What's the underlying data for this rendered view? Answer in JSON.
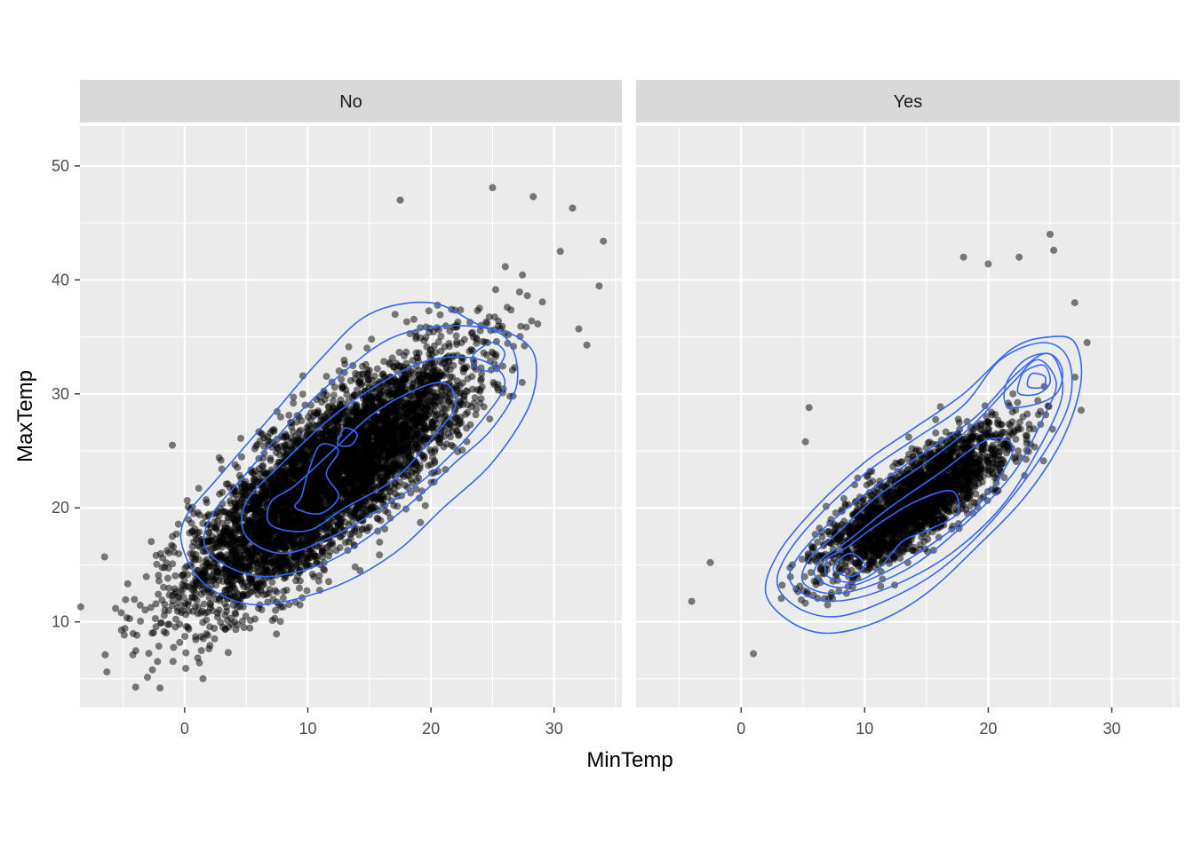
{
  "chart_data": {
    "type": "scatter",
    "facet_by": "RainTomorrow",
    "xlabel": "MinTemp",
    "ylabel": "MaxTemp",
    "xlim": [
      -8.5,
      35.5
    ],
    "ylim": [
      2.5,
      53.5
    ],
    "x_ticks": [
      0,
      10,
      20,
      30
    ],
    "y_ticks": [
      10,
      20,
      30,
      40,
      50
    ],
    "grid": true,
    "legend": "none",
    "colors": {
      "panel_bg": "#ebebeb",
      "strip_bg": "#d9d9d9",
      "grid": "#ffffff",
      "point": "#000000",
      "contour": "#3366ff"
    },
    "panels": [
      {
        "label": "No",
        "point_cloud": {
          "center": [
            11.5,
            22.5
          ],
          "axis_angle_deg": 44,
          "major_sd": 13.5,
          "minor_sd": 4.3,
          "count": 5200,
          "outliers": [
            [
              -2,
              4.2
            ],
            [
              34,
              43.4
            ],
            [
              32,
              35.7
            ],
            [
              1.2,
              6.4
            ],
            [
              -6.5,
              15.7
            ],
            [
              25,
              48.1
            ],
            [
              28.3,
              47.3
            ],
            [
              31.5,
              46.3
            ],
            [
              -4.2,
              7.1
            ],
            [
              30.5,
              42.5
            ],
            [
              -1,
              25.5
            ],
            [
              17.5,
              47
            ]
          ]
        },
        "contours": [
          [
            [
              0,
              16
            ],
            [
              2,
              13
            ],
            [
              6,
              11.5
            ],
            [
              12,
              13
            ],
            [
              17,
              16
            ],
            [
              21,
              20
            ],
            [
              25,
              24
            ],
            [
              28,
              29
            ],
            [
              28.5,
              33
            ],
            [
              27,
              35
            ],
            [
              24,
              36
            ],
            [
              20,
              38
            ],
            [
              15,
              37
            ],
            [
              11,
              33
            ],
            [
              7,
              28
            ],
            [
              3,
              23
            ],
            [
              0,
              19
            ]
          ],
          [
            [
              2,
              16
            ],
            [
              6,
              14
            ],
            [
              11,
              15
            ],
            [
              15,
              17.5
            ],
            [
              19,
              21
            ],
            [
              22,
              24
            ],
            [
              25,
              27
            ],
            [
              27,
              31
            ],
            [
              26,
              35
            ],
            [
              22,
              36
            ],
            [
              17,
              35
            ],
            [
              13,
              32
            ],
            [
              9,
              28
            ],
            [
              5,
              23
            ],
            [
              2,
              19
            ]
          ],
          [
            [
              5,
              17.5
            ],
            [
              8,
              16
            ],
            [
              12,
              17.5
            ],
            [
              16,
              20
            ],
            [
              20,
              23
            ],
            [
              24,
              27.5
            ],
            [
              26,
              31
            ],
            [
              24,
              33
            ],
            [
              20,
              33
            ],
            [
              16,
              31
            ],
            [
              12,
              28
            ],
            [
              8,
              24
            ],
            [
              5,
              20.5
            ]
          ],
          [
            [
              7,
              18.5
            ],
            [
              10,
              18
            ],
            [
              13,
              20
            ],
            [
              17,
              22.5
            ],
            [
              20,
              26
            ],
            [
              22,
              29
            ],
            [
              21,
              31
            ],
            [
              18,
              30
            ],
            [
              15,
              28
            ],
            [
              12,
              25
            ],
            [
              9,
              22
            ],
            [
              7,
              20.5
            ]
          ],
          [
            [
              9,
              20
            ],
            [
              11,
              19.5
            ],
            [
              12.5,
              21
            ],
            [
              11.5,
              23
            ],
            [
              12.5,
              25
            ],
            [
              11,
              25.5
            ],
            [
              10,
              23
            ],
            [
              9.5,
              21
            ]
          ],
          [
            [
              12.5,
              25.5
            ],
            [
              13.5,
              25.5
            ],
            [
              14,
              26.5
            ],
            [
              13,
              27
            ],
            [
              12.5,
              26
            ]
          ],
          [
            [
              23.5,
              32.5
            ],
            [
              25,
              32
            ],
            [
              26,
              33.5
            ],
            [
              25,
              34.5
            ],
            [
              23.5,
              33.5
            ]
          ]
        ]
      },
      {
        "label": "Yes",
        "point_cloud": {
          "center": [
            14,
            20.5
          ],
          "axis_angle_deg": 40,
          "major_sd": 8.5,
          "minor_sd": 2.6,
          "count": 2300,
          "outliers": [
            [
              -4,
              11.8
            ],
            [
              -2.5,
              15.2
            ],
            [
              1,
              7.2
            ],
            [
              5.5,
              28.8
            ],
            [
              5.2,
              25.8
            ],
            [
              18,
              42
            ],
            [
              22.5,
              42
            ],
            [
              25,
              44
            ],
            [
              25.3,
              42.6
            ],
            [
              28,
              34.5
            ],
            [
              20,
              41.4
            ],
            [
              27,
              38
            ]
          ]
        },
        "contours": [
          [
            [
              2,
              12.5
            ],
            [
              4,
              10
            ],
            [
              7,
              9
            ],
            [
              11,
              10
            ],
            [
              15,
              12.5
            ],
            [
              19,
              16.5
            ],
            [
              23,
              21
            ],
            [
              26,
              26
            ],
            [
              27.5,
              31
            ],
            [
              27,
              34.5
            ],
            [
              25,
              35
            ],
            [
              22,
              34
            ],
            [
              18,
              30
            ],
            [
              14,
              27
            ],
            [
              10,
              24
            ],
            [
              6,
              20
            ],
            [
              3,
              16
            ]
          ],
          [
            [
              3,
              13
            ],
            [
              5,
              11
            ],
            [
              8,
              10.5
            ],
            [
              12,
              12
            ],
            [
              16,
              14.5
            ],
            [
              20,
              18.5
            ],
            [
              24,
              24
            ],
            [
              26.5,
              29
            ],
            [
              26.5,
              33
            ],
            [
              24.5,
              34.5
            ],
            [
              21,
              33
            ],
            [
              18,
              29
            ],
            [
              14,
              26
            ],
            [
              10,
              23
            ],
            [
              6,
              19
            ],
            [
              3.5,
              15.5
            ]
          ],
          [
            [
              4,
              13.5
            ],
            [
              6,
              12
            ],
            [
              9,
              12
            ],
            [
              13,
              13.5
            ],
            [
              17,
              16
            ],
            [
              21,
              20
            ],
            [
              24,
              25
            ],
            [
              26,
              30
            ],
            [
              25,
              33.5
            ],
            [
              22.5,
              32
            ],
            [
              19,
              28
            ],
            [
              15,
              25
            ],
            [
              11,
              22
            ],
            [
              7,
              18.5
            ],
            [
              4.5,
              15.5
            ]
          ],
          [
            [
              5,
              13.5
            ],
            [
              7,
              12.5
            ],
            [
              10,
              13
            ],
            [
              14,
              15
            ],
            [
              18,
              18.5
            ],
            [
              22,
              23
            ],
            [
              24.5,
              28
            ],
            [
              25.5,
              31
            ],
            [
              24,
              33
            ],
            [
              22,
              31
            ],
            [
              18.5,
              27
            ],
            [
              15,
              24
            ],
            [
              11,
              21
            ],
            [
              7.5,
              17.5
            ],
            [
              5.5,
              15.5
            ]
          ],
          [
            [
              6,
              14
            ],
            [
              8,
              13
            ],
            [
              11,
              14
            ],
            [
              15,
              16.5
            ],
            [
              19,
              20
            ],
            [
              22,
              25
            ],
            [
              20,
              26
            ],
            [
              16,
              23
            ],
            [
              12,
              20
            ],
            [
              8.5,
              17
            ],
            [
              6.5,
              15.5
            ]
          ],
          [
            [
              7,
              14
            ],
            [
              9,
              13.5
            ],
            [
              11,
              14.5
            ],
            [
              13,
              17
            ],
            [
              15,
              18
            ],
            [
              17.5,
              19.5
            ],
            [
              17,
              21.5
            ],
            [
              14,
              20.5
            ],
            [
              11,
              18.5
            ],
            [
              8.5,
              16.5
            ],
            [
              7,
              15.5
            ]
          ],
          [
            [
              7.5,
              14.5
            ],
            [
              9,
              14
            ],
            [
              10,
              15
            ],
            [
              9,
              16
            ],
            [
              8,
              15.5
            ]
          ],
          [
            [
              21.5,
              29
            ],
            [
              23.5,
              29
            ],
            [
              25.5,
              30
            ],
            [
              26,
              32
            ],
            [
              25,
              33.5
            ],
            [
              23,
              33
            ],
            [
              21.5,
              31
            ]
          ],
          [
            [
              22.5,
              30
            ],
            [
              24,
              30
            ],
            [
              25,
              31
            ],
            [
              24.5,
              32.5
            ],
            [
              23,
              32
            ],
            [
              22.5,
              31
            ]
          ],
          [
            [
              23.3,
              30.6
            ],
            [
              24.4,
              30.6
            ],
            [
              24.6,
              31.5
            ],
            [
              23.6,
              31.8
            ],
            [
              23.2,
              31.2
            ]
          ]
        ]
      }
    ]
  }
}
